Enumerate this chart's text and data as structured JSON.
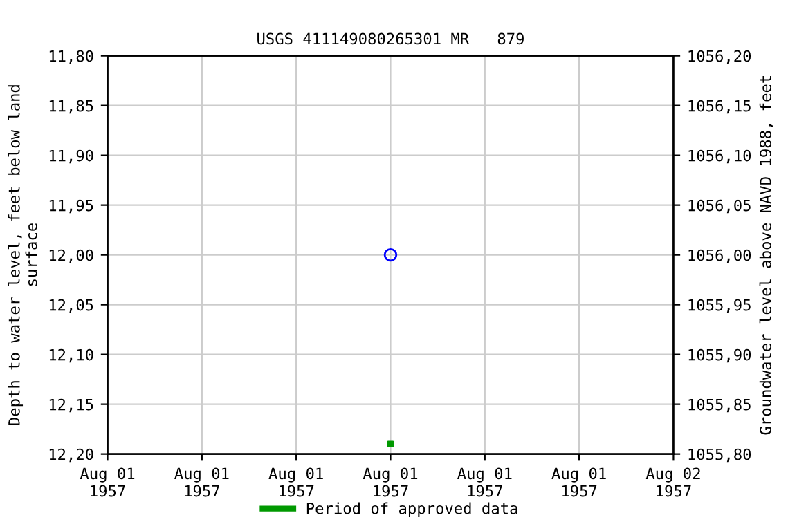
{
  "chart_data": {
    "type": "scatter",
    "title": "USGS 411149080265301 MR   879",
    "ylabel": "Depth to water level, feet below land\nsurface",
    "y2label": "Groundwater level above NAVD 1988, feet",
    "categories": [
      "Aug 01\n1957",
      "Aug 01\n1957",
      "Aug 01\n1957",
      "Aug 01\n1957",
      "Aug 01\n1957",
      "Aug 01\n1957",
      "Aug 02\n1957"
    ],
    "series": [
      {
        "color": "#0000ff",
        "values": [
          null,
          null,
          null,
          12.0,
          null,
          null,
          null
        ],
        "marker": "circle"
      },
      {
        "name": "Period of approved data",
        "color": "#009900",
        "values": [
          null,
          null,
          null,
          12.19,
          null,
          null,
          null
        ],
        "marker": "square"
      }
    ],
    "ylim": [
      12.2,
      11.8
    ],
    "yticks": [
      {
        "value": 11.8,
        "label": "11,80"
      },
      {
        "value": 11.85,
        "label": "11,85"
      },
      {
        "value": 11.9,
        "label": "11,90"
      },
      {
        "value": 11.95,
        "label": "11,95"
      },
      {
        "value": 12.0,
        "label": "12,00"
      },
      {
        "value": 12.05,
        "label": "12,05"
      },
      {
        "value": 12.1,
        "label": "12,10"
      },
      {
        "value": 12.15,
        "label": "12,15"
      },
      {
        "value": 12.2,
        "label": "12,20"
      }
    ],
    "y2lim": [
      1055.8,
      1056.2
    ],
    "y2ticks": [
      {
        "value": 1055.8,
        "label": "1055,80"
      },
      {
        "value": 1055.85,
        "label": "1055,85"
      },
      {
        "value": 1055.9,
        "label": "1055,90"
      },
      {
        "value": 1055.95,
        "label": "1055,95"
      },
      {
        "value": 1056.0,
        "label": "1056,00"
      },
      {
        "value": 1056.05,
        "label": "1056,05"
      },
      {
        "value": 1056.1,
        "label": "1056,10"
      },
      {
        "value": 1056.15,
        "label": "1056,15"
      },
      {
        "value": 1056.2,
        "label": "1056,20"
      }
    ],
    "grid": true,
    "legend": "bottom"
  }
}
